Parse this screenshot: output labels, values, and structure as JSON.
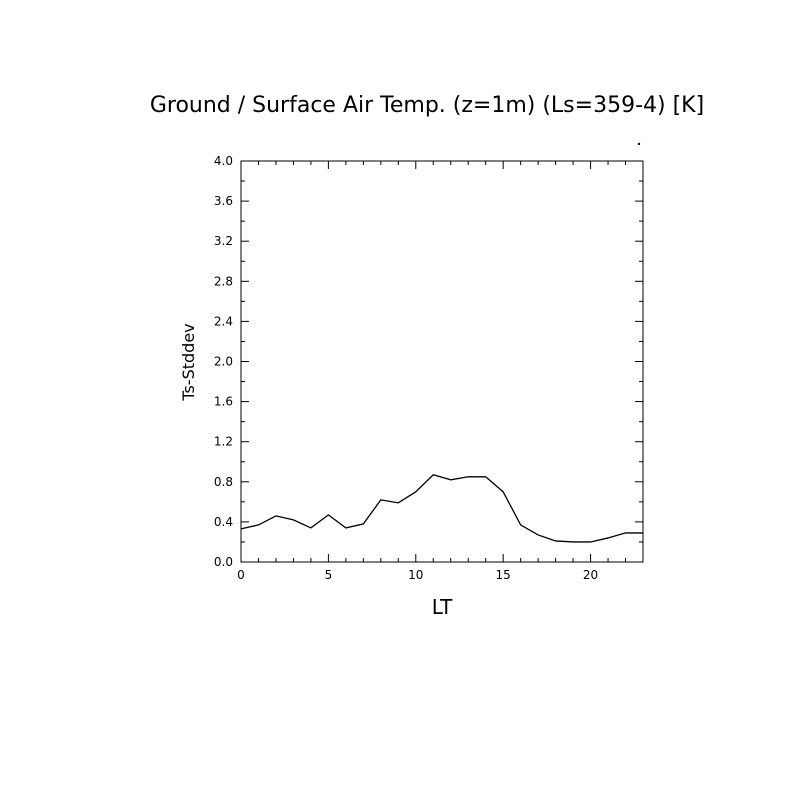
{
  "chart_data": {
    "type": "line",
    "title": "Ground / Surface Air Temp. (z=1m) (Ls=359-4) [K]",
    "xlabel": "LT",
    "ylabel": "Ts-Stddev",
    "xlim": [
      0,
      23
    ],
    "ylim": [
      0,
      4
    ],
    "x_ticks": [
      "0",
      "5",
      "10",
      "15",
      "20"
    ],
    "y_ticks": [
      "0.0",
      "0.4",
      "0.8",
      "1.2",
      "1.6",
      "2.0",
      "2.4",
      "2.8",
      "3.2",
      "3.6",
      "4.0"
    ],
    "grid": false,
    "legend": "none",
    "line_color": "#000000",
    "series": [
      {
        "x": [
          0,
          1,
          2,
          3,
          4,
          5,
          6,
          7,
          8,
          9,
          10,
          11,
          12,
          13,
          14,
          15,
          16,
          17,
          18,
          19,
          20,
          21,
          22,
          23
        ],
        "values": [
          0.33,
          0.37,
          0.46,
          0.42,
          0.34,
          0.47,
          0.34,
          0.38,
          0.62,
          0.59,
          0.7,
          0.87,
          0.82,
          0.85,
          0.85,
          0.7,
          0.37,
          0.27,
          0.21,
          0.2,
          0.2,
          0.24,
          0.29,
          0.29
        ]
      }
    ]
  }
}
